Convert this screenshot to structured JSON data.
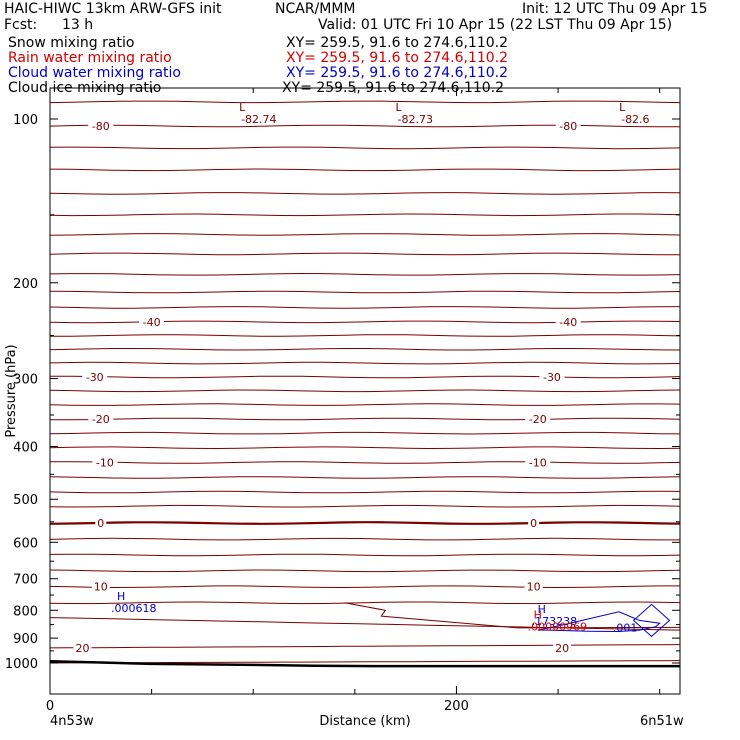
{
  "header": {
    "model_title": "HAIC-HIWC 13km ARW-GFS init",
    "org": "NCAR/MMM",
    "init": "Init: 12 UTC Thu 09 Apr 15",
    "fcst_label": "Fcst:",
    "fcst_value": "13 h",
    "valid": "Valid: 01 UTC Fri 10 Apr 15 (22 LST Thu 09 Apr 15)"
  },
  "fields": [
    {
      "name": "Snow mixing ratio",
      "xy": "XY= 259.5, 91.6 to 274.6,110.2",
      "color": "#000000"
    },
    {
      "name": "Rain water mixing ratio",
      "xy": "XY= 259.5, 91.6 to 274.6,110.2",
      "color": "#d40000"
    },
    {
      "name": "Cloud water mixing ratio",
      "xy": "XY= 259.5, 91.6 to 274.6,110.2",
      "color": "#0000c8"
    },
    {
      "name": "Cloud ice mixing ratio",
      "xy": "XY= 259.5, 91.6 to 274.6,110.2",
      "color": "#000000"
    }
  ],
  "chart_data": {
    "type": "contour-cross-section",
    "ylabel": "Pressure (hPa)",
    "xlabel": "Distance (km)",
    "x_left_label": "4n53w",
    "x_right_label": "6n51w",
    "xlim": [
      0,
      310
    ],
    "ylim": [
      1050,
      50
    ],
    "y_scale": "log",
    "x_ticks": [
      0,
      200
    ],
    "y_ticks": [
      100,
      200,
      300,
      400,
      500,
      600,
      700,
      800,
      900,
      1000
    ],
    "temperature_isotherms": {
      "color": "#7a0000",
      "levels_hpa": [
        72,
        80,
        93,
        103,
        113,
        124,
        137,
        150,
        163,
        177,
        193,
        208,
        222,
        236,
        250,
        265,
        281,
        298,
        316,
        335,
        356,
        378,
        402,
        428,
        456,
        485,
        515,
        553,
        592,
        633,
        677,
        724,
        775
      ],
      "labels": [
        {
          "text": "-80",
          "x": 25,
          "p": 103
        },
        {
          "text": "-80",
          "x": 255,
          "p": 103
        },
        {
          "text": "-40",
          "x": 50,
          "p": 236
        },
        {
          "text": "-40",
          "x": 255,
          "p": 236
        },
        {
          "text": "-30",
          "x": 22,
          "p": 298
        },
        {
          "text": "-30",
          "x": 247,
          "p": 298
        },
        {
          "text": "-20",
          "x": 25,
          "p": 356
        },
        {
          "text": "-20",
          "x": 240,
          "p": 356
        },
        {
          "text": "-10",
          "x": 27,
          "p": 428
        },
        {
          "text": "-10",
          "x": 240,
          "p": 428
        },
        {
          "text": "0",
          "x": 25,
          "p": 553
        },
        {
          "text": "0",
          "x": 238,
          "p": 553
        },
        {
          "text": "10",
          "x": 25,
          "p": 724
        },
        {
          "text": "10",
          "x": 238,
          "p": 724
        },
        {
          "text": "20",
          "x": 16,
          "p": 938
        },
        {
          "text": "20",
          "x": 252,
          "p": 938
        }
      ],
      "minima": [
        {
          "symbol": "L",
          "value": "-82.74",
          "x": 95
        },
        {
          "symbol": "L",
          "value": "-82.73",
          "x": 172
        },
        {
          "symbol": "L",
          "value": "-82.6",
          "x": 282
        }
      ]
    },
    "maxima_labels": [
      {
        "symbol": "H",
        "value": ".000618",
        "x": 30,
        "p": 805,
        "color": "#0000c8"
      },
      {
        "symbol": "H",
        "value": ".173238",
        "x": 237,
        "p": 852,
        "color": "#0000c8"
      },
      {
        "symbol": "H",
        "value": ".00000969",
        "x": 235,
        "p": 872,
        "color": "#d40000"
      },
      {
        "symbol": "",
        "value": ".001",
        "x": 277,
        "p": 875,
        "color": "#0000c8"
      }
    ],
    "surface_pressure_line": {
      "x": [
        0,
        10,
        25,
        50,
        100,
        130,
        160,
        200,
        250,
        310
      ],
      "p": [
        993,
        995,
        998,
        1004,
        1008,
        1012,
        1013,
        1013,
        1013,
        1013
      ]
    },
    "cloud_water_contour": {
      "x": [
        240,
        250,
        280,
        290,
        300,
        298,
        290,
        280,
        265,
        245,
        240
      ],
      "p": [
        870,
        855,
        805,
        835,
        845,
        858,
        870,
        875,
        874,
        870,
        870
      ]
    }
  }
}
